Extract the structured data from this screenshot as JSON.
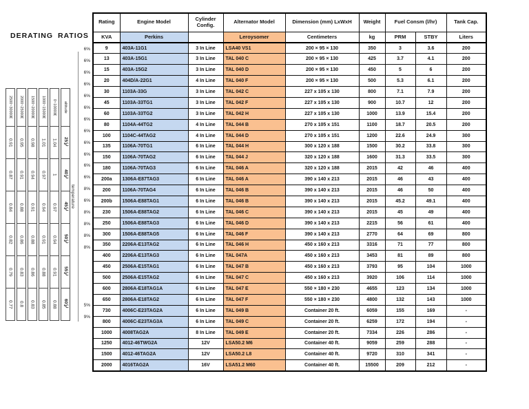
{
  "derating": {
    "title": "DERATING RATIOS",
    "side_label": "temperature",
    "columns": [
      {
        "header": "2500~3000米",
        "cells": [
          "0.91",
          "0.87",
          "0.84",
          "0.82",
          "0.79",
          "0.77"
        ]
      },
      {
        "header": "2000~2500米",
        "cells": [
          "0.95",
          "0.91",
          "0.88",
          "0.86",
          "0.83",
          "0.8"
        ]
      },
      {
        "header": "1500~2000米",
        "cells": [
          "0.98",
          "0.94",
          "0.91",
          "0.88",
          "0.86",
          "0.83"
        ]
      },
      {
        "header": "1000~1500米",
        "cells": [
          "1.01",
          "0.97",
          "0.94",
          "0.91",
          "0.88",
          "0.85"
        ]
      },
      {
        "header": "0~1000米",
        "cells": [
          "1.04",
          "1",
          "0.97",
          "0.94",
          "0.91",
          "0.88"
        ]
      },
      {
        "header": "altitude",
        "cells": [
          "25℃",
          "40℃",
          "45℃",
          "50℃",
          "55℃",
          "60℃"
        ]
      }
    ],
    "row_percents": [
      "6%",
      "6%",
      "6%",
      "6%",
      "6%",
      "6%",
      "6%",
      "6%",
      "6%",
      "6%",
      "6%",
      "6%",
      "8%",
      "6%",
      "8%",
      "8%",
      "8%",
      "8%",
      "",
      "",
      "",
      "",
      "5%",
      "9%",
      "",
      "",
      "",
      "",
      "",
      ""
    ]
  },
  "table": {
    "headers": {
      "rating": "Rating",
      "engine": "Engine Model",
      "cylinder": "Cylinder Config.",
      "alternator": "Alternator Model",
      "dimension": "Dimension (mm) LxWxH",
      "weight": "Weight",
      "fuel": "Fuel Consm (l/hr)",
      "tank": "Tank Cap."
    },
    "subheaders": {
      "rating": "KVA",
      "engine": "Perkins",
      "cylinder": "",
      "alternator": "Leroysomer",
      "dimension": "Centimeters",
      "weight": "kg",
      "prm": "PRM",
      "stby": "STBY",
      "tank": "Liters"
    },
    "col_keys": [
      "rating",
      "engine",
      "cylinder",
      "alternator",
      "dimension",
      "weight",
      "prm",
      "stby",
      "tank"
    ],
    "rows": [
      [
        "9",
        "403A-11G1",
        "3 In Line",
        "LSA40 VS1",
        "200 × 95 × 130",
        "350",
        "3",
        "3.6",
        "200"
      ],
      [
        "13",
        "403A-15G1",
        "3 In Line",
        "TAL 040 C",
        "200 × 95 × 130",
        "425",
        "3.7",
        "4.1",
        "200"
      ],
      [
        "15",
        "403A-15G2",
        "3 In Line",
        "TAL 040 D",
        "200 × 95 × 130",
        "450",
        "5",
        "6",
        "200"
      ],
      [
        "20",
        "404D/A-22G1",
        "4 In Line",
        "TAL 040 F",
        "200 × 95 × 130",
        "500",
        "5.3",
        "6.1",
        "200"
      ],
      [
        "30",
        "1103A-33G",
        "3 In Line",
        "TAL 042 C",
        "227 x 105 x 130",
        "800",
        "7.1",
        "7.9",
        "200"
      ],
      [
        "45",
        "1103A-33TG1",
        "3 In Line",
        "TAL 042 F",
        "227 x 105 x 130",
        "900",
        "10.7",
        "12",
        "200"
      ],
      [
        "60",
        "1103A-33TG2",
        "3 In Line",
        "TAL 042 H",
        "227 x 105 x 130",
        "1000",
        "13.9",
        "15.4",
        "200"
      ],
      [
        "80",
        "1104A-44TG2",
        "4 In Line",
        "TAL 044 B",
        "270 x 105 x 151",
        "1100",
        "18.7",
        "20.5",
        "200"
      ],
      [
        "100",
        "1104C-44TAG2",
        "4 In Line",
        "TAL 044 D",
        "270 x 105 x 151",
        "1200",
        "22.6",
        "24.9",
        "300"
      ],
      [
        "135",
        "1106A-70TG1",
        "6 In Line",
        "TAL 044 H",
        "300 x 120 x 188",
        "1500",
        "30.2",
        "33.8",
        "300"
      ],
      [
        "150",
        "1106A-70TAG2",
        "6 In Line",
        "TAL 044 J",
        "320 x 120 x 188",
        "1600",
        "31.3",
        "33.5",
        "300"
      ],
      [
        "180",
        "1106A-70TAG3",
        "6 In Line",
        "TAL 046 A",
        "320 x 120 x 188",
        "2015",
        "42",
        "46",
        "400"
      ],
      [
        "200a",
        "1306A-E87TAG3",
        "6 In Line",
        "TAL 046 A",
        "390 x 140 x 213",
        "2015",
        "46",
        "43",
        "400"
      ],
      [
        "200",
        "1106A-70TAG4",
        "6 In Line",
        "TAL 046 B",
        "390 x 140 x 213",
        "2015",
        "46",
        "50",
        "400"
      ],
      [
        "200b",
        "1506A-E88TAG1",
        "6 In Line",
        "TAL 046 B",
        "390 x 140 x 213",
        "2015",
        "45.2",
        "49.1",
        "400"
      ],
      [
        "230",
        "1506A-E88TAG2",
        "6 In Line",
        "TAL 046 C",
        "390 x 140 x 213",
        "2015",
        "45",
        "49",
        "400"
      ],
      [
        "250",
        "1506A-E88TAG3",
        "6 In Line",
        "TAL 046 D",
        "390 x 140 x 213",
        "2215",
        "56",
        "61",
        "400"
      ],
      [
        "300",
        "1506A-E88TAG5",
        "6 In Line",
        "TAL 046 F",
        "390 x 140 x 213",
        "2770",
        "64",
        "69",
        "800"
      ],
      [
        "350",
        "2206A-E13TAG2",
        "6 In Line",
        "TAL 046 H",
        "450 x 160 x 213",
        "3316",
        "71",
        "77",
        "800"
      ],
      [
        "400",
        "2206A-E13TAG3",
        "6 In Line",
        "TAL 047A",
        "450 x 160 x 213",
        "3453",
        "81",
        "89",
        "800"
      ],
      [
        "450",
        "2506A-E15TAG1",
        "6 In Line",
        "TAL 047 B",
        "450 x 160 x 213",
        "3793",
        "95",
        "104",
        "1000"
      ],
      [
        "500",
        "2506A-E15TAG2",
        "6 In Line",
        "TAL 047 C",
        "450 x 160 x 213",
        "3920",
        "106",
        "114",
        "1000"
      ],
      [
        "600",
        "2806A-E18TAG1A",
        "6 In Line",
        "TAL 047 E",
        "550 × 180 × 230",
        "4655",
        "123",
        "134",
        "1000"
      ],
      [
        "650",
        "2806A-E18TAG2",
        "6 In Line",
        "TAL 047 F",
        "550 × 180 × 230",
        "4800",
        "132",
        "143",
        "1000"
      ],
      [
        "730",
        "4006C-E23TAG2A",
        "6 In Line",
        "TAL 049 B",
        "Container 20 ft.",
        "6059",
        "155",
        "169",
        "-"
      ],
      [
        "800",
        "4006C-E23TAG3A",
        "6 In Line",
        "TAL 049 C",
        "Container 20 ft.",
        "6259",
        "172",
        "194",
        "-"
      ],
      [
        "1000",
        "4008TAG2A",
        "8 In Line",
        "TAL 049 E",
        "Container 20 ft.",
        "7334",
        "226",
        "286",
        "-"
      ],
      [
        "1250",
        "4012-46TWG2A",
        "12V",
        "LSA50.2 M6",
        "Container 40 ft.",
        "9059",
        "259",
        "288",
        "-"
      ],
      [
        "1500",
        "4012-46TAG2A",
        "12V",
        "LSA50.2 L8",
        "Container 40 ft.",
        "9720",
        "310",
        "341",
        "-"
      ],
      [
        "2000",
        "4016TAG2A",
        "16V",
        "LSA51.2 M60",
        "Container 40 ft.",
        "15500",
        "209",
        "212",
        "-"
      ]
    ],
    "colors": {
      "engine_fill": "#c5d8f0",
      "alternator_fill": "#fac090"
    }
  }
}
